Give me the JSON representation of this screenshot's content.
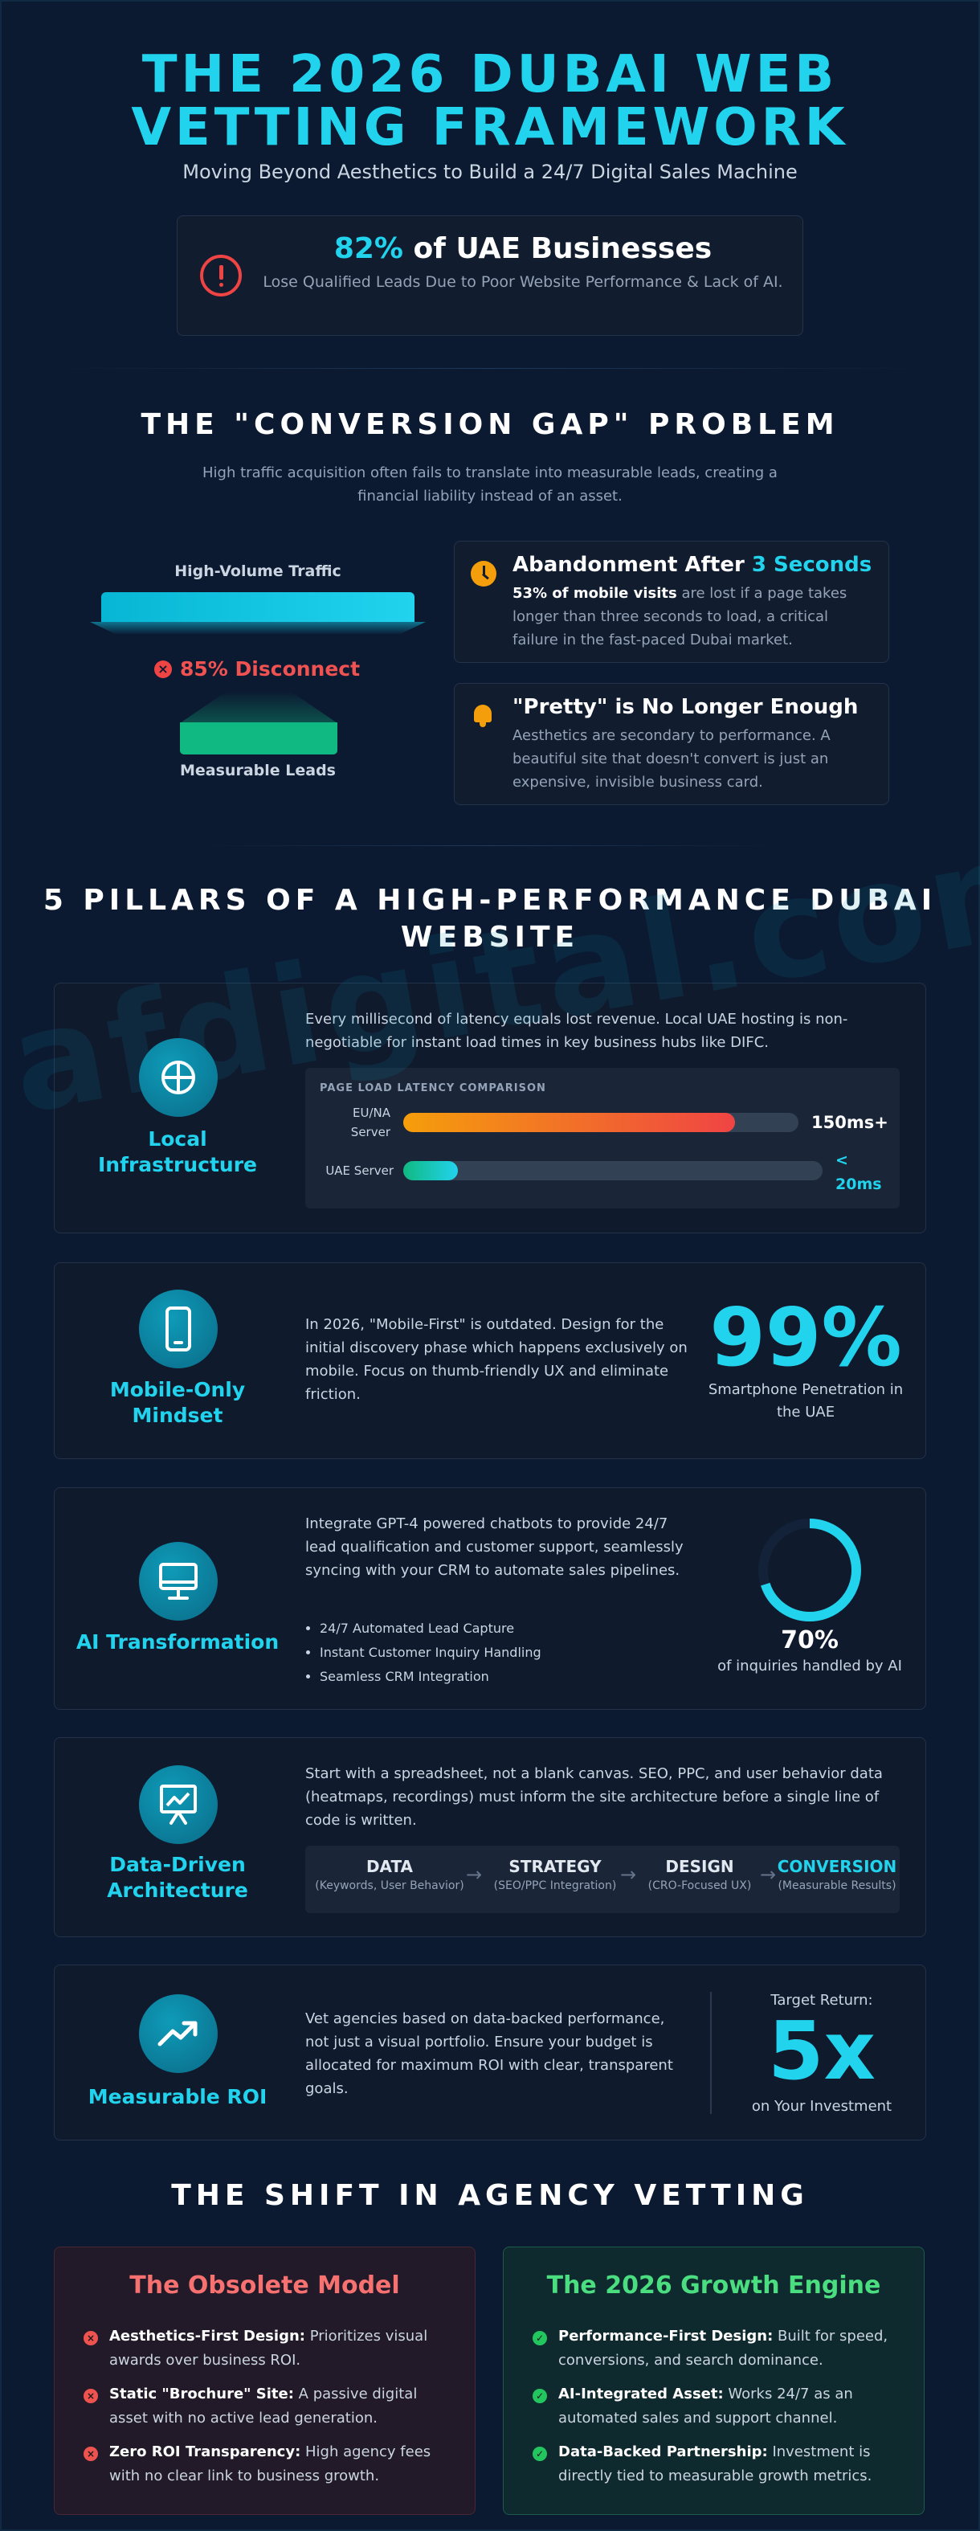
{
  "hero": {
    "title_line1": "THE 2026 DUBAI WEB",
    "title_line2": "VETTING FRAMEWORK",
    "subtitle": "Moving Beyond Aesthetics to Build a 24/7 Digital Sales Machine",
    "stat_highlight": "82%",
    "stat_text": "of UAE Businesses",
    "stat_desc": "Lose Qualified Leads Due to Poor Website Performance & Lack of AI."
  },
  "gap": {
    "title": "THE \"CONVERSION GAP\" PROBLEM",
    "subtitle": "High traffic acquisition often fails to translate into measurable leads, creating a financial liability instead of an asset.",
    "funnel_top_label": "High-Volume Traffic",
    "funnel_disconnect": "85% Disconnect",
    "funnel_bottom_label": "Measurable Leads",
    "card1": {
      "title_prefix": "Abandonment After",
      "title_highlight": "3 Seconds",
      "text_bold": "53% of mobile visits",
      "text_rest": " are lost if a page takes longer than three seconds to load, a critical failure in the fast-paced Dubai market."
    },
    "card2": {
      "title": "\"Pretty\" is No Longer Enough",
      "text": "Aesthetics are secondary to performance. A beautiful site that doesn't convert is just an expensive, invisible business card."
    }
  },
  "pillars": {
    "title_line1": "5 PILLARS OF A HIGH-PERFORMANCE DUBAI",
    "title_line2": "WEBSITE",
    "p1": {
      "name": "Local Infrastructure",
      "text": "Every millisecond of latency equals lost revenue. Local UAE hosting is non-negotiable for instant load times in key business hubs like DIFC.",
      "latency_title": "PAGE LOAD LATENCY COMPARISON",
      "row1_label": "EU/NA Server",
      "row1_value": "150ms+",
      "row1_fill": 0.84,
      "row2_label": "UAE Server",
      "row2_value": "< 20ms",
      "row2_fill": 0.13
    },
    "p2": {
      "name": "Mobile-Only Mindset",
      "text": "In 2026, \"Mobile-First\" is outdated. Design for the initial discovery phase which happens exclusively on mobile. Focus on thumb-friendly UX and eliminate friction.",
      "stat": "99%",
      "stat_caption": "Smartphone Penetration in the UAE"
    },
    "p3": {
      "name": "AI Transformation",
      "text": "Integrate GPT-4 powered chatbots to provide 24/7 lead qualification and customer support, seamlessly syncing with your CRM to automate sales pipelines.",
      "bullets": [
        "24/7 Automated Lead Capture",
        "Instant Customer Inquiry Handling",
        "Seamless CRM Integration"
      ],
      "stat": "70%",
      "stat_value": 0.7,
      "stat_caption": "of inquiries handled by AI"
    },
    "p4": {
      "name": "Data-Driven Architecture",
      "text": "Start with a spreadsheet, not a blank canvas. SEO, PPC, and user behavior data (heatmaps, recordings) must inform the site architecture before a single line of code is written.",
      "steps": [
        {
          "title": "DATA",
          "sub": "(Keywords, User Behavior)"
        },
        {
          "title": "STRATEGY",
          "sub": "(SEO/PPC Integration)"
        },
        {
          "title": "DESIGN",
          "sub": "(CRO-Focused UX)"
        },
        {
          "title": "CONVERSION",
          "sub": "(Measurable Results)"
        }
      ],
      "arrow": "→"
    },
    "p5": {
      "name": "Measurable ROI",
      "text": "Vet agencies based on data-backed performance, not just a visual portfolio. Ensure your budget is allocated for maximum ROI with clear, transparent goals.",
      "target_label": "Target Return:",
      "stat": "5x",
      "stat_caption": "on Your Investment"
    }
  },
  "shift": {
    "title": "THE SHIFT IN AGENCY VETTING",
    "obsolete": {
      "title": "The Obsolete Model",
      "items": [
        {
          "bold": "Aesthetics-First Design:",
          "text": " Prioritizes visual awards over business ROI."
        },
        {
          "bold": "Static \"Brochure\" Site:",
          "text": " A passive digital asset with no active lead generation."
        },
        {
          "bold": "Zero ROI Transparency:",
          "text": " High agency fees with no clear link to business growth."
        }
      ]
    },
    "growth": {
      "title": "The 2026 Growth Engine",
      "items": [
        {
          "bold": "Performance-First Design:",
          "text": " Built for speed, conversions, and search dominance."
        },
        {
          "bold": "AI-Integrated Asset:",
          "text": " Works 24/7 as an automated sales and support channel."
        },
        {
          "bold": "Data-Backed Partnership:",
          "text": " Investment is directly tied to measurable growth metrics."
        }
      ]
    }
  },
  "watermark": "afdigital.com",
  "colors": {
    "background": "#0b1a31",
    "accent": "#22d3ee",
    "danger": "#ef4444",
    "warning": "#f59e0b",
    "success": "#22c55e",
    "obsolete_title": "#f87171",
    "growth_title": "#4ade80"
  }
}
